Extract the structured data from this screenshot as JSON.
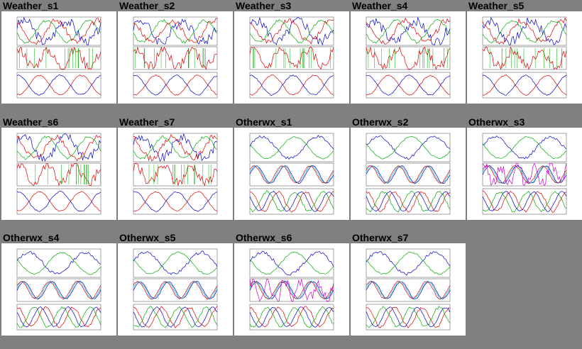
{
  "gallery": {
    "items": [
      {
        "label": "Weather_s1",
        "kind": "weather"
      },
      {
        "label": "Weather_s2",
        "kind": "weather"
      },
      {
        "label": "Weather_s3",
        "kind": "weather"
      },
      {
        "label": "Weather_s4",
        "kind": "weather"
      },
      {
        "label": "Weather_s5",
        "kind": "weather"
      },
      {
        "label": "Weather_s6",
        "kind": "weather"
      },
      {
        "label": "Weather_s7",
        "kind": "weather"
      },
      {
        "label": "Otherwx_s1",
        "kind": "otherwx"
      },
      {
        "label": "Otherwx_s2",
        "kind": "otherwx"
      },
      {
        "label": "Otherwx_s3",
        "kind": "otherwx"
      },
      {
        "label": "Otherwx_s4",
        "kind": "otherwx"
      },
      {
        "label": "Otherwx_s5",
        "kind": "otherwx"
      },
      {
        "label": "Otherwx_s6",
        "kind": "otherwx"
      },
      {
        "label": "Otherwx_s7",
        "kind": "otherwx"
      }
    ]
  },
  "colors": {
    "background": "#808080",
    "thumb_bg": "#ffffff",
    "series": [
      "#0000cc",
      "#00aa00",
      "#dd0000",
      "#00cccc",
      "#cc00cc"
    ]
  }
}
